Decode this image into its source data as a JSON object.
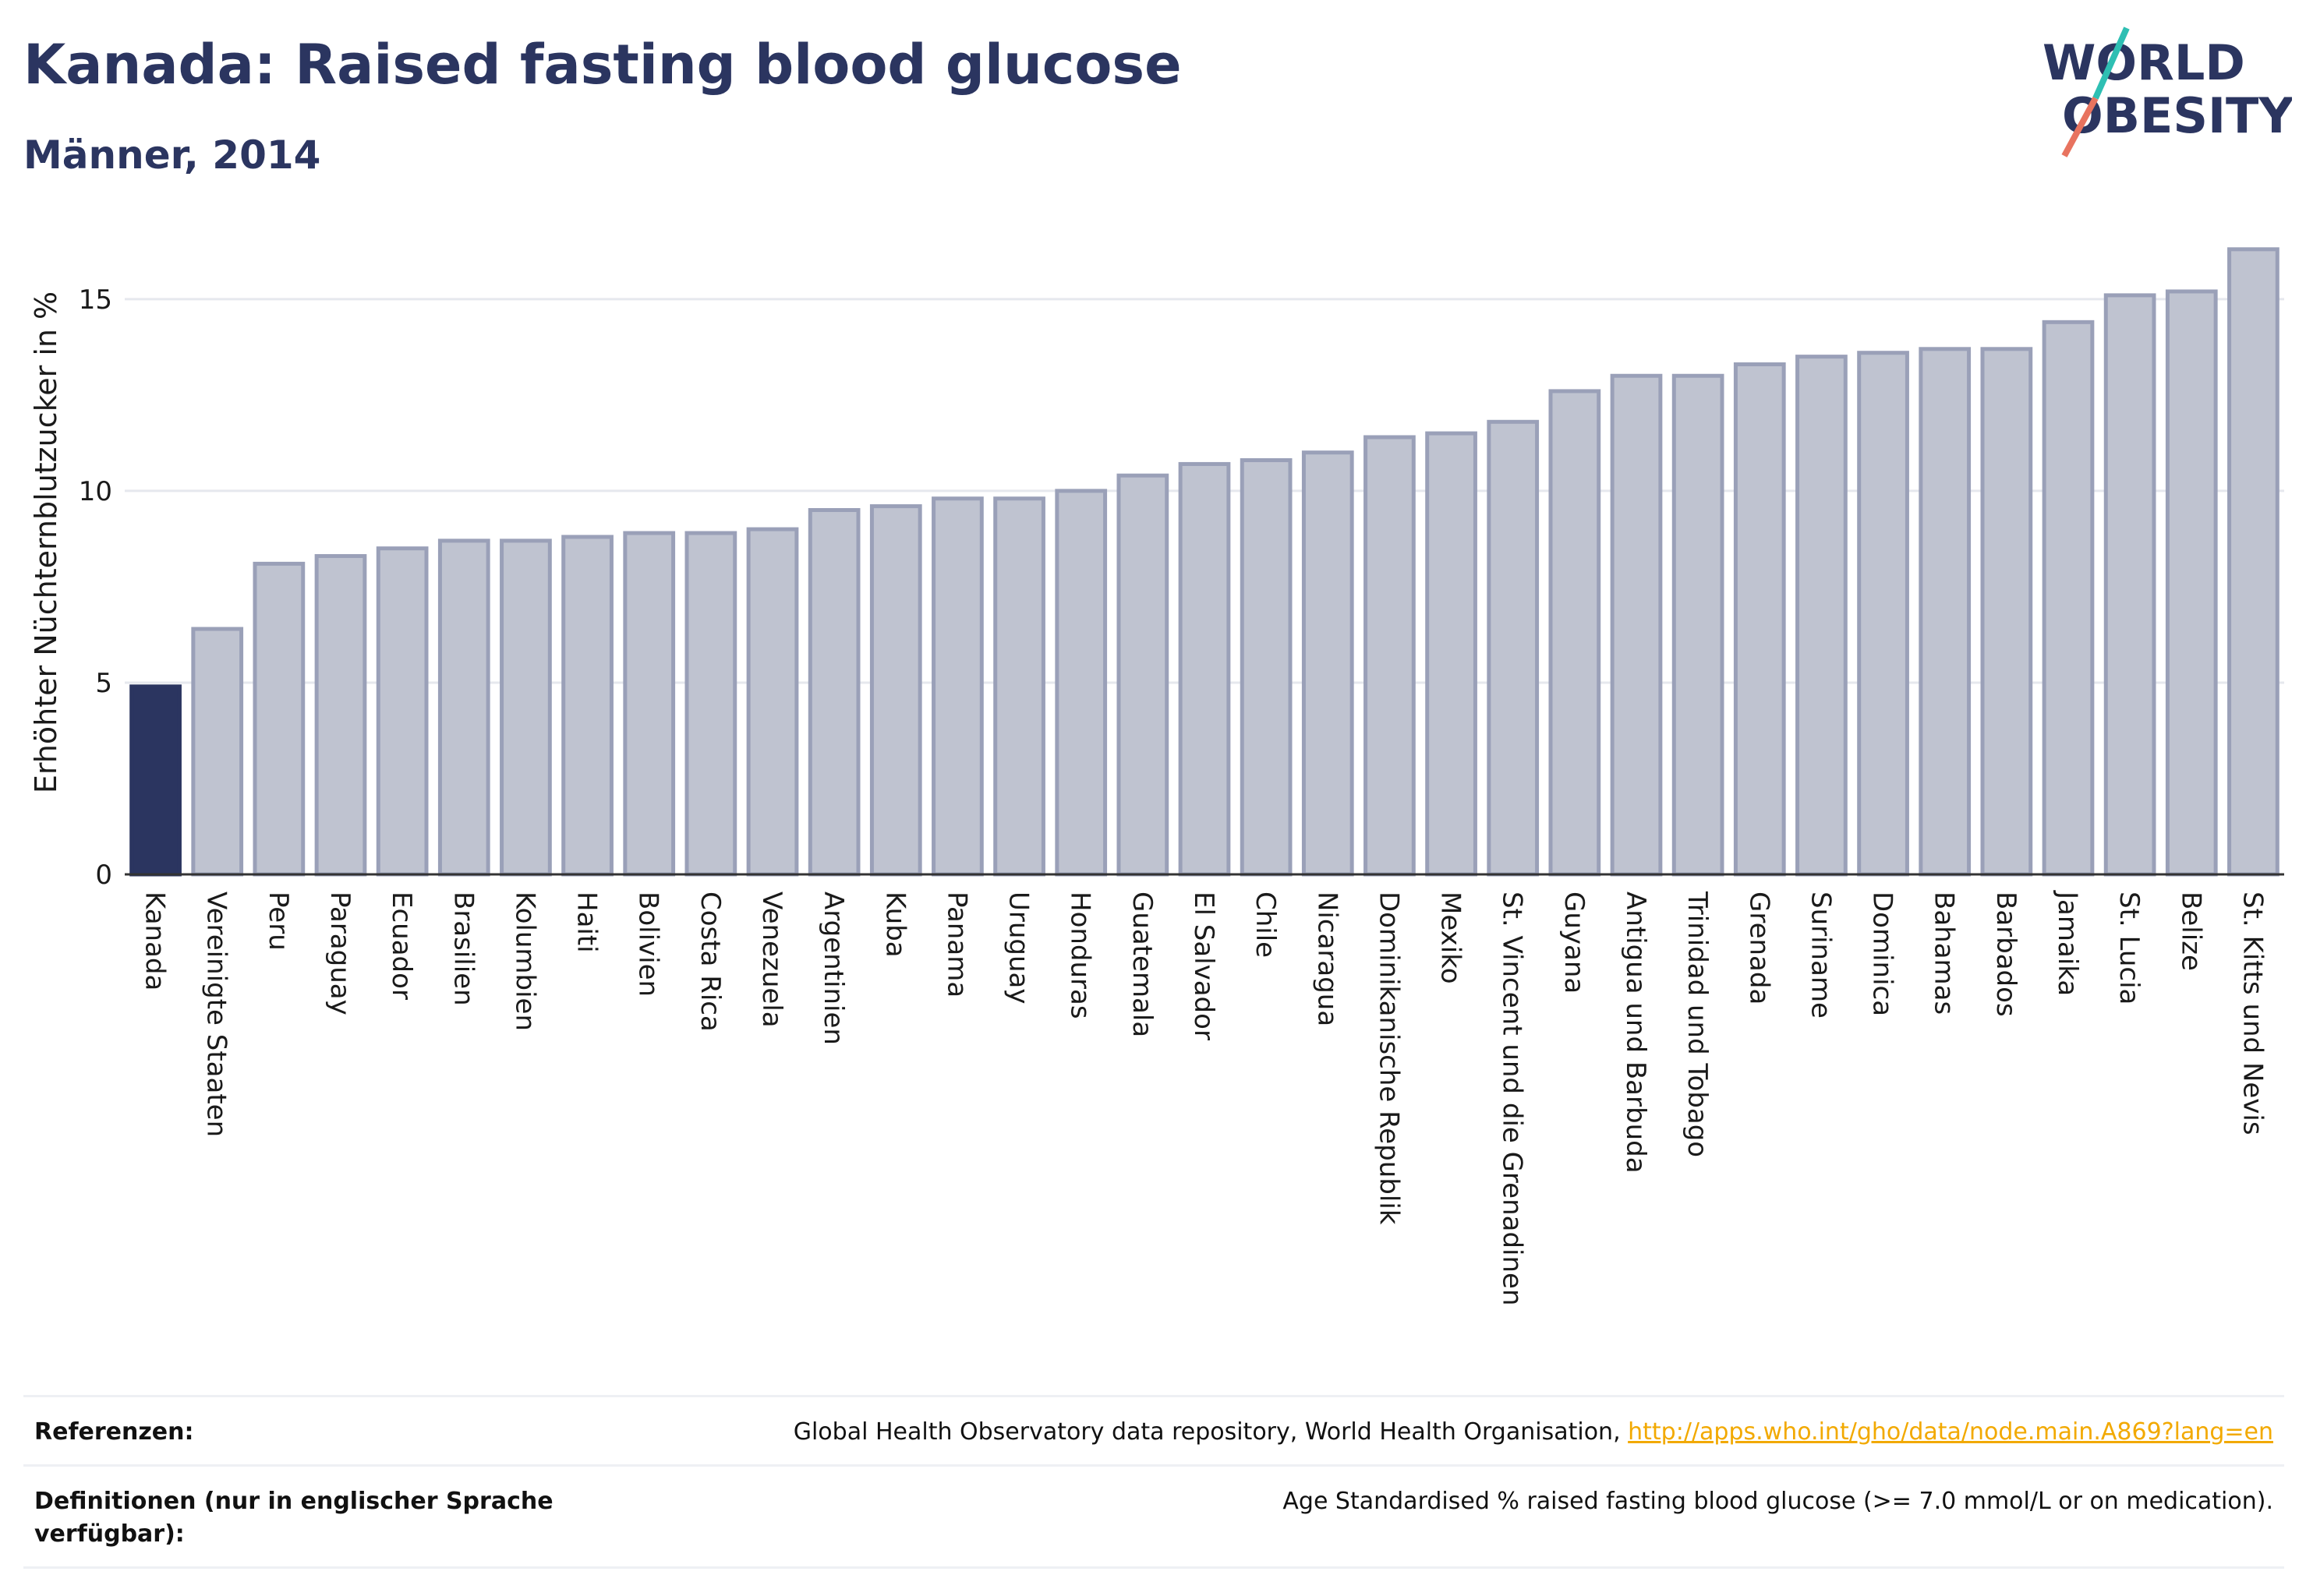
{
  "header": {
    "title": "Kanada: Raised fasting blood glucose",
    "subtitle": "Männer, 2014",
    "logo_line1": "WORLD",
    "logo_line2": "OBESITY"
  },
  "colors": {
    "highlight": "#2b3560",
    "bar": "#bfc3d0",
    "bar_border": "#9aa0b8",
    "grid": "#e6e8ee",
    "link": "#f2a900"
  },
  "chart_data": {
    "type": "bar",
    "ylabel": "Erhöhter Nüchternblutzucker in %",
    "ylim": [
      0,
      16.5
    ],
    "yticks": [
      0,
      5,
      10,
      15
    ],
    "grid": true,
    "highlight": "Kanada",
    "categories": [
      "Kanada",
      "Vereinigte Staaten",
      "Peru",
      "Paraguay",
      "Ecuador",
      "Brasilien",
      "Kolumbien",
      "Haiti",
      "Bolivien",
      "Costa Rica",
      "Venezuela",
      "Argentinien",
      "Kuba",
      "Panama",
      "Uruguay",
      "Honduras",
      "Guatemala",
      "El Salvador",
      "Chile",
      "Nicaragua",
      "Dominikanische Republik",
      "Mexiko",
      "St. Vincent und die Grenadinen",
      "Guyana",
      "Antigua und Barbuda",
      "Trinidad und Tobago",
      "Grenada",
      "Suriname",
      "Dominica",
      "Bahamas",
      "Barbados",
      "Jamaika",
      "St. Lucia",
      "Belize",
      "St. Kitts und Nevis"
    ],
    "values": [
      4.9,
      6.4,
      8.1,
      8.3,
      8.5,
      8.7,
      8.7,
      8.8,
      8.9,
      8.9,
      9.0,
      9.5,
      9.6,
      9.8,
      9.8,
      10.0,
      10.4,
      10.7,
      10.8,
      11.0,
      11.4,
      11.5,
      11.8,
      12.6,
      13.0,
      13.0,
      13.3,
      13.5,
      13.6,
      13.7,
      13.7,
      14.4,
      15.1,
      15.2,
      16.3
    ]
  },
  "footer": {
    "ref_label": "Referenzen:",
    "ref_text": "Global Health Observatory data repository, World Health Organisation, ",
    "ref_link": "http://apps.who.int/gho/data/node.main.A869?lang=en",
    "def_label": "Definitionen (nur in englischer Sprache verfügbar):",
    "def_text": "Age Standardised % raised fasting blood glucose (>= 7.0 mmol/L or on medication)."
  }
}
